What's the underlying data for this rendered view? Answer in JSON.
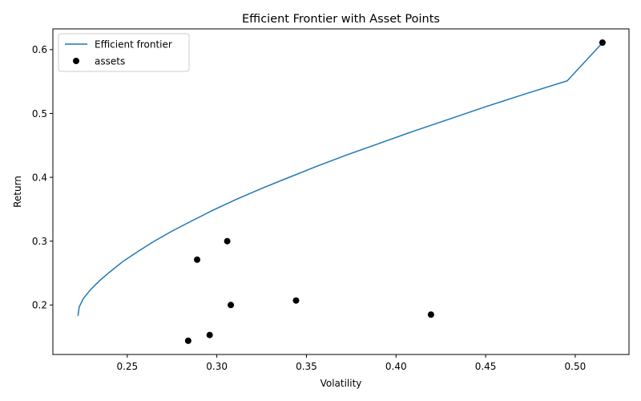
{
  "chart_data": {
    "type": "scatter",
    "title": "Efficient Frontier with Asset Points",
    "xlabel": "Volatility",
    "ylabel": "Return",
    "xlim": [
      0.2085,
      0.53
    ],
    "ylim": [
      0.1225,
      0.6325
    ],
    "xticks": [
      0.25,
      0.3,
      0.35,
      0.4,
      0.45,
      0.5
    ],
    "xtick_labels": [
      "0.25",
      "0.30",
      "0.35",
      "0.40",
      "0.45",
      "0.50"
    ],
    "yticks": [
      0.2,
      0.3,
      0.4,
      0.5,
      0.6
    ],
    "ytick_labels": [
      "0.2",
      "0.3",
      "0.4",
      "0.5",
      "0.6"
    ],
    "grid": false,
    "legend_position": "upper-left",
    "series": [
      {
        "name": "Efficient frontier",
        "kind": "line",
        "color": "#1f77b4",
        "x": [
          0.2225,
          0.2232,
          0.2255,
          0.2295,
          0.2345,
          0.2408,
          0.2475,
          0.2555,
          0.2645,
          0.2745,
          0.2855,
          0.2975,
          0.3105,
          0.3245,
          0.3395,
          0.3555,
          0.3725,
          0.3905,
          0.4095,
          0.4295,
          0.4505,
          0.4725,
          0.4955,
          0.515
        ],
        "y": [
          0.183,
          0.197,
          0.21,
          0.224,
          0.238,
          0.253,
          0.268,
          0.283,
          0.299,
          0.315,
          0.331,
          0.348,
          0.365,
          0.382,
          0.399,
          0.417,
          0.435,
          0.453,
          0.472,
          0.491,
          0.511,
          0.531,
          0.551,
          0.61
        ]
      },
      {
        "name": "assets",
        "kind": "scatter",
        "color": "#000000",
        "points": [
          {
            "x": 0.5152,
            "y": 0.611
          },
          {
            "x": 0.3058,
            "y": 0.3
          },
          {
            "x": 0.289,
            "y": 0.271
          },
          {
            "x": 0.3442,
            "y": 0.207
          },
          {
            "x": 0.3078,
            "y": 0.2
          },
          {
            "x": 0.4195,
            "y": 0.185
          },
          {
            "x": 0.296,
            "y": 0.153
          },
          {
            "x": 0.284,
            "y": 0.144
          }
        ]
      }
    ]
  }
}
